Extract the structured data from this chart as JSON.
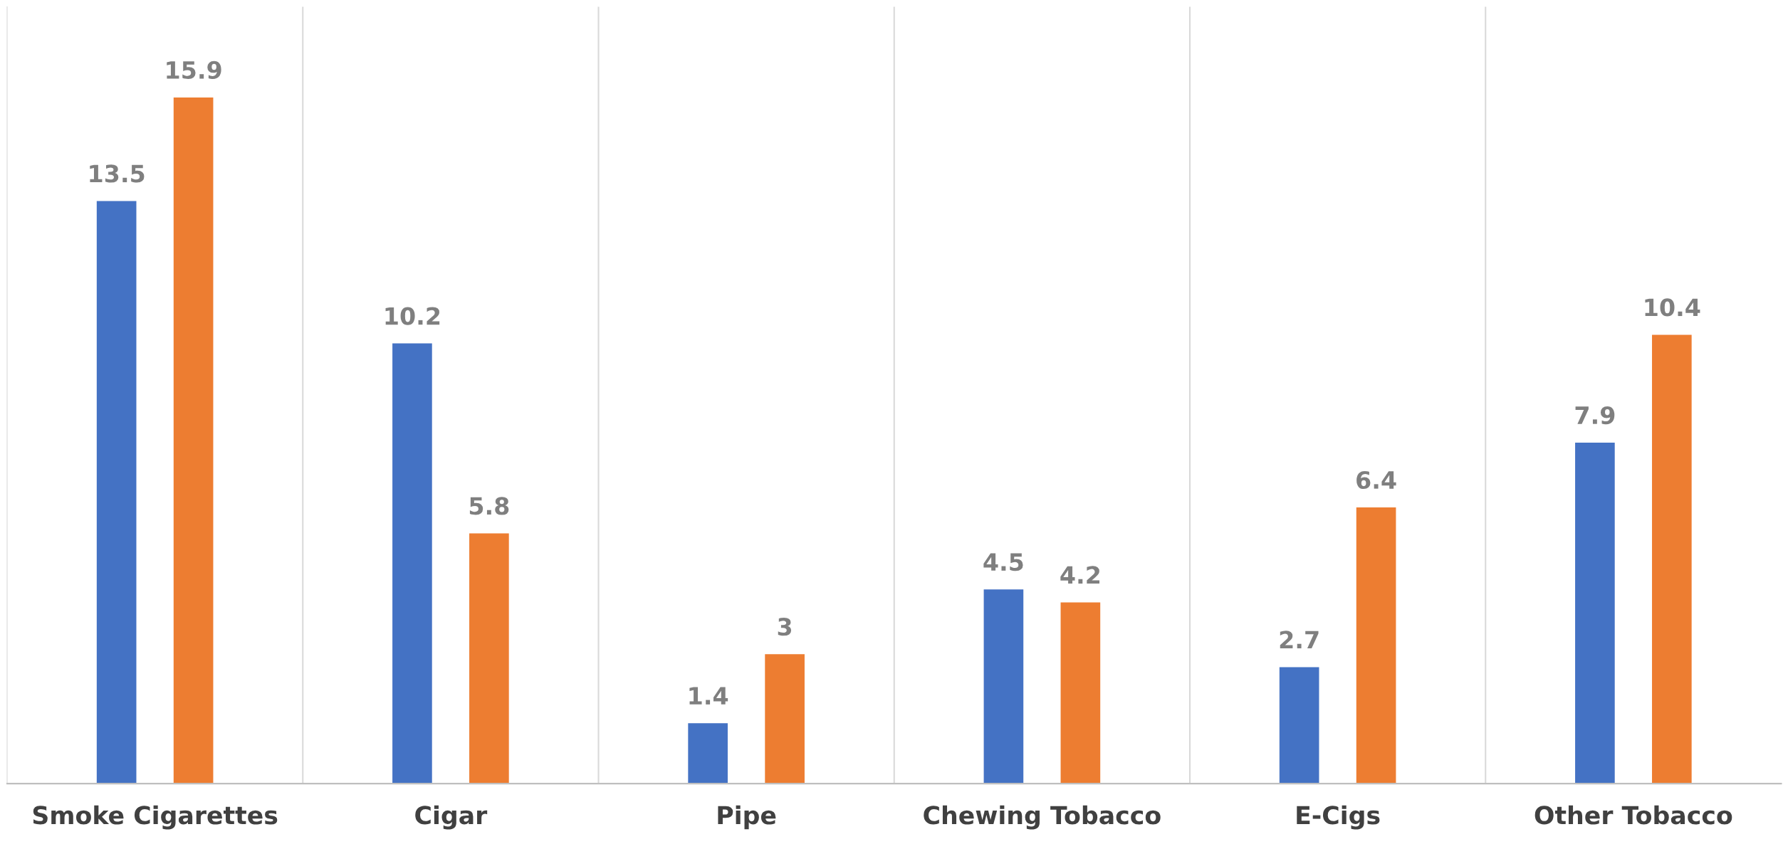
{
  "chart_data": {
    "type": "bar",
    "categories": [
      "Smoke Cigarettes",
      "Cigar",
      "Pipe",
      "Chewing Tobacco",
      "E-Cigs",
      "Other Tobacco"
    ],
    "series": [
      {
        "color": "#4472c4",
        "values": [
          13.5,
          10.2,
          1.4,
          4.5,
          2.7,
          7.9
        ]
      },
      {
        "color": "#ed7d31",
        "values": [
          15.9,
          5.8,
          3,
          4.2,
          6.4,
          10.4
        ]
      }
    ],
    "ylim": [
      0,
      18
    ],
    "tick_labels": "x",
    "data_labels": true,
    "grid": "x",
    "legend": false
  }
}
